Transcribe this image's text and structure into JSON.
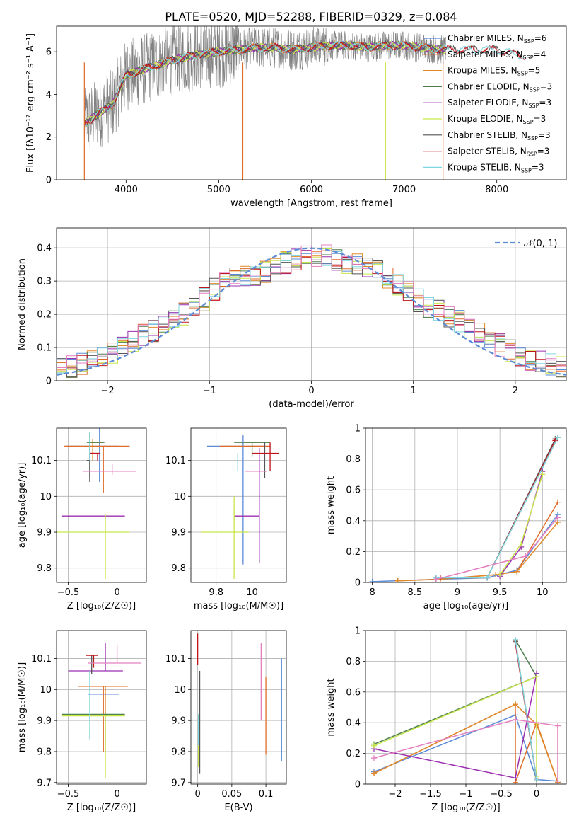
{
  "figure": {
    "title": "PLATE=0520, MJD=52288, FIBERID=0329, z=0.084"
  },
  "colors": {
    "Chabrier MILES": "#5b8bd6",
    "Salpeter MILES": "#e06c2a",
    "Kroupa MILES": "#e08a2a",
    "Chabrier ELODIE": "#4f7f4f",
    "Salpeter ELODIE": "#9b2fb0",
    "Kroupa ELODIE": "#c8e64a",
    "Chabrier STELIB": "#555555",
    "Salpeter STELIB": "#c0141c",
    "Kroupa STELIB": "#7fd6e0",
    "pink": "#e47fc0",
    "spectrum": "#808080",
    "gaussian": "#5b8bd6"
  },
  "chart_data": [
    {
      "type": "line",
      "id": "spectrum",
      "xlabel": "wavelength [Angstrom, rest frame]",
      "ylabel": "Flux [fλ10⁻¹⁷ erg cm⁻² s⁻¹ A⁻¹]",
      "xlim": [
        3250,
        8750
      ],
      "ylim": [
        0,
        7.2
      ],
      "xticks": [
        4000,
        5000,
        6000,
        7000,
        8000
      ],
      "yticks": [
        0,
        2,
        4,
        6
      ],
      "legend": "right",
      "legend_entries": [
        {
          "base": "Chabrier MILES, N",
          "sub": "SSP",
          "tail": "=6"
        },
        {
          "base": "Salpeter MILES, N",
          "sub": "SSP",
          "tail": "=4"
        },
        {
          "base": "Kroupa MILES, N",
          "sub": "SSP",
          "tail": "=5"
        },
        {
          "base": "Chabrier ELODIE, N",
          "sub": "SSP",
          "tail": "=3"
        },
        {
          "base": "Salpeter ELODIE, N",
          "sub": "SSP",
          "tail": "=3"
        },
        {
          "base": "Kroupa ELODIE, N",
          "sub": "SSP",
          "tail": "=3"
        },
        {
          "base": "Chabrier STELIB, N",
          "sub": "SSP",
          "tail": "=3"
        },
        {
          "base": "Salpeter STELIB, N",
          "sub": "SSP",
          "tail": "=3"
        },
        {
          "base": "Kroupa STELIB, N",
          "sub": "SSP",
          "tail": "=3"
        }
      ],
      "series_envelope": {
        "x": [
          3550,
          3700,
          3850,
          4000,
          4200,
          4500,
          4800,
          5000,
          5200,
          5400,
          5600,
          5800,
          6000,
          6200,
          6400,
          6600,
          6800,
          7000,
          7200,
          7400,
          7600,
          7800,
          8000,
          8200,
          8300
        ],
        "y": [
          2.6,
          3.1,
          3.5,
          4.9,
          5.2,
          5.6,
          5.9,
          6.0,
          6.1,
          6.2,
          6.2,
          6.1,
          6.2,
          6.3,
          6.3,
          6.2,
          6.3,
          6.3,
          6.2,
          6.1,
          6.1,
          6.1,
          6.1,
          5.9,
          5.8
        ]
      }
    },
    {
      "type": "line",
      "id": "residuals",
      "xlabel": "(data-model)/error",
      "ylabel": "Normed distribution",
      "xlim": [
        -2.5,
        2.5
      ],
      "ylim": [
        0,
        0.46
      ],
      "xticks": [
        -2,
        -1,
        0,
        1,
        2
      ],
      "yticks": [
        0.0,
        0.1,
        0.2,
        0.3,
        0.4
      ],
      "legend": "upper right",
      "legend_label": "𝒩(0, 1)",
      "hist_x": [
        -2.5,
        -2.3,
        -2.1,
        -1.9,
        -1.7,
        -1.5,
        -1.3,
        -1.1,
        -0.9,
        -0.7,
        -0.5,
        -0.3,
        -0.1,
        0.1,
        0.3,
        0.5,
        0.7,
        0.9,
        1.1,
        1.3,
        1.5,
        1.7,
        1.9,
        2.1,
        2.3,
        2.5
      ],
      "hist_y": [
        0.03,
        0.045,
        0.06,
        0.09,
        0.13,
        0.16,
        0.19,
        0.23,
        0.29,
        0.31,
        0.32,
        0.35,
        0.37,
        0.38,
        0.36,
        0.35,
        0.32,
        0.28,
        0.23,
        0.2,
        0.17,
        0.13,
        0.1,
        0.07,
        0.05,
        0.04
      ]
    },
    {
      "type": "scatter",
      "id": "age-Z",
      "xlabel": "Z [log₁₀(Z/Z☉)]",
      "ylabel": "age  [log₁₀(age/yr)]",
      "xlim": [
        -0.62,
        0.3
      ],
      "ylim": [
        9.76,
        10.19
      ],
      "xticks": [
        -0.5,
        0.0
      ],
      "yticks": [
        9.8,
        9.9,
        10.0,
        10.1
      ],
      "points": [
        {
          "series": "Chabrier MILES",
          "x": -0.18,
          "y": 10.14,
          "xerr": [
            0.35,
            0.2
          ],
          "yerr": [
            0.1,
            0.07
          ]
        },
        {
          "series": "Salpeter MILES",
          "x": -0.14,
          "y": 10.14,
          "xerr": [
            0.4,
            0.27
          ],
          "yerr": [
            0.13,
            0.0
          ]
        },
        {
          "series": "Kroupa MILES",
          "x": -0.25,
          "y": 10.15,
          "xerr": [
            0.05,
            0.1
          ],
          "yerr": [
            0.05,
            0.01
          ]
        },
        {
          "series": "Chabrier ELODIE",
          "x": -0.28,
          "y": 10.15,
          "xerr": [
            0.03,
            0.15
          ],
          "yerr": [
            0.1,
            0.03
          ]
        },
        {
          "series": "Salpeter ELODIE",
          "x": -0.12,
          "y": 9.945,
          "xerr": [
            0.45,
            0.2
          ],
          "yerr": [
            0.0,
            0.0
          ]
        },
        {
          "series": "Kroupa ELODIE",
          "x": -0.12,
          "y": 9.9,
          "xerr": [
            0.5,
            0.25
          ],
          "yerr": [
            0.13,
            0.05
          ]
        },
        {
          "series": "Chabrier STELIB",
          "x": -0.28,
          "y": 10.1,
          "xerr": [
            0.03,
            0.0
          ],
          "yerr": [
            0.06,
            0.0
          ]
        },
        {
          "series": "Salpeter STELIB",
          "x": -0.2,
          "y": 10.12,
          "xerr": [
            0.08,
            0.03
          ],
          "yerr": [
            0.02,
            0.0
          ]
        },
        {
          "series": "Kroupa STELIB",
          "x": -0.28,
          "y": 10.12,
          "xerr": [
            0.0,
            0.0
          ],
          "yerr": [
            0.02,
            0.06
          ]
        },
        {
          "series": "pink",
          "x": -0.05,
          "y": 10.07,
          "xerr": [
            0.3,
            0.25
          ],
          "yerr": [
            0.01,
            0.02
          ]
        }
      ]
    },
    {
      "type": "scatter",
      "id": "age-mass",
      "xlabel": "mass [log₁₀(M/M☉)]",
      "ylabel": "",
      "xlim": [
        9.66,
        10.19
      ],
      "ylim": [
        9.76,
        10.19
      ],
      "xticks": [
        9.8,
        10.0
      ],
      "yticks": [
        9.8,
        9.9,
        10.0,
        10.1
      ],
      "points": [
        {
          "series": "Chabrier MILES",
          "x": 9.95,
          "y": 10.14,
          "xerr": [
            0.2,
            0.12
          ],
          "yerr": [
            0.33,
            0.03
          ]
        },
        {
          "series": "Salpeter MILES",
          "x": 10.0,
          "y": 10.14,
          "xerr": [
            0.18,
            0.1
          ],
          "yerr": [
            0.0,
            0.0
          ]
        },
        {
          "series": "Kroupa MILES",
          "x": 10.02,
          "y": 10.15,
          "xerr": [
            0.06,
            0.04
          ],
          "yerr": [
            0.0,
            0.0
          ]
        },
        {
          "series": "Chabrier ELODIE",
          "x": 10.0,
          "y": 10.15,
          "xerr": [
            0.1,
            0.1
          ],
          "yerr": [
            0.04,
            0.0
          ]
        },
        {
          "series": "Salpeter ELODIE",
          "x": 10.04,
          "y": 9.945,
          "xerr": [
            0.14,
            0.0
          ],
          "yerr": [
            0.13,
            0.19
          ]
        },
        {
          "series": "Kroupa ELODIE",
          "x": 9.9,
          "y": 9.9,
          "xerr": [
            0.18,
            0.08
          ],
          "yerr": [
            0.13,
            0.1
          ]
        },
        {
          "series": "Chabrier STELIB",
          "x": 10.07,
          "y": 10.05,
          "xerr": [
            0.0,
            0.0
          ],
          "yerr": [
            0.0,
            0.1
          ]
        },
        {
          "series": "Salpeter STELIB",
          "x": 10.1,
          "y": 10.12,
          "xerr": [
            0.1,
            0.05
          ],
          "yerr": [
            0.05,
            0.03
          ]
        },
        {
          "series": "Kroupa STELIB",
          "x": 9.92,
          "y": 10.12,
          "xerr": [
            0.0,
            0.0
          ],
          "yerr": [
            0.05,
            0.0
          ]
        },
        {
          "series": "pink",
          "x": 10.04,
          "y": 10.07,
          "xerr": [
            0.08,
            0.04
          ],
          "yerr": [
            0.0,
            0.0
          ]
        }
      ]
    },
    {
      "type": "line",
      "id": "mass-weight-age",
      "xlabel": "age  [log₁₀(age/yr)]",
      "ylabel": "mass weight",
      "xlim": [
        7.92,
        10.28
      ],
      "ylim": [
        0,
        1.0
      ],
      "xticks": [
        8.0,
        8.5,
        9.0,
        9.5,
        10.0
      ],
      "yticks": [
        0.0,
        0.2,
        0.4,
        0.6,
        0.8,
        1.0
      ],
      "series": [
        {
          "name": "Chabrier MILES",
          "x": [
            8.0,
            8.75,
            9.35,
            9.7,
            10.18
          ],
          "y": [
            0.005,
            0.02,
            0.03,
            0.08,
            0.44
          ]
        },
        {
          "name": "Salpeter MILES",
          "x": [
            8.3,
            8.75,
            9.45,
            9.7,
            10.18
          ],
          "y": [
            0.01,
            0.02,
            0.05,
            0.07,
            0.52
          ]
        },
        {
          "name": "Kroupa MILES",
          "x": [
            8.3,
            8.8,
            9.45,
            9.7,
            10.18
          ],
          "y": [
            0.01,
            0.02,
            0.05,
            0.07,
            0.39
          ]
        },
        {
          "name": "Chabrier ELODIE",
          "x": [
            8.75,
            9.35,
            10.18
          ],
          "y": [
            0.03,
            0.03,
            0.94
          ]
        },
        {
          "name": "Salpeter ELODIE",
          "x": [
            9.5,
            9.75,
            10.0
          ],
          "y": [
            0.04,
            0.23,
            0.72
          ]
        },
        {
          "name": "Kroupa ELODIE",
          "x": [
            9.5,
            9.75,
            10.0
          ],
          "y": [
            0.05,
            0.25,
            0.7
          ]
        },
        {
          "name": "Chabrier STELIB",
          "x": [
            8.75,
            9.35,
            10.15
          ],
          "y": [
            0.03,
            0.03,
            0.93
          ]
        },
        {
          "name": "Salpeter STELIB",
          "x": [
            8.8,
            9.35,
            10.15
          ],
          "y": [
            0.03,
            0.03,
            0.92
          ]
        },
        {
          "name": "Kroupa STELIB",
          "x": [
            8.75,
            9.35,
            10.18
          ],
          "y": [
            0.03,
            0.03,
            0.94
          ]
        },
        {
          "name": "pink",
          "x": [
            8.75,
            9.8,
            10.18
          ],
          "y": [
            0.02,
            0.17,
            0.42
          ]
        }
      ]
    },
    {
      "type": "scatter",
      "id": "mass-Z",
      "xlabel": "Z [log₁₀(Z/Z☉)]",
      "ylabel": "mass [log₁₀(M/M☉)]",
      "xlim": [
        -0.62,
        0.3
      ],
      "ylim": [
        9.695,
        10.19
      ],
      "xticks": [
        -0.5,
        0.0
      ],
      "yticks": [
        9.7,
        9.8,
        9.9,
        10.0,
        10.1
      ],
      "points": [
        {
          "series": "Chabrier MILES",
          "x": -0.1,
          "y": 9.985,
          "xerr": [
            0.2,
            0.12
          ],
          "yerr": [
            0.0,
            0.0
          ]
        },
        {
          "series": "Salpeter MILES",
          "x": -0.14,
          "y": 10.01,
          "xerr": [
            0.26,
            0.25
          ],
          "yerr": [
            0.21,
            0.0
          ]
        },
        {
          "series": "Kroupa MILES",
          "x": -0.12,
          "y": 10.01,
          "xerr": [
            0.0,
            0.0
          ],
          "yerr": [
            0.21,
            0.0
          ]
        },
        {
          "series": "Chabrier ELODIE",
          "x": -0.12,
          "y": 9.92,
          "xerr": [
            0.45,
            0.2
          ],
          "yerr": [
            0.0,
            0.0
          ]
        },
        {
          "series": "Salpeter ELODIE",
          "x": -0.12,
          "y": 10.06,
          "xerr": [
            0.38,
            0.18
          ],
          "yerr": [
            0.0,
            0.09
          ]
        },
        {
          "series": "Kroupa ELODIE",
          "x": -0.12,
          "y": 9.915,
          "xerr": [
            0.45,
            0.2
          ],
          "yerr": [
            0.2,
            0.0
          ]
        },
        {
          "series": "Chabrier STELIB",
          "x": -0.26,
          "y": 10.05,
          "xerr": [
            0.0,
            0.0
          ],
          "yerr": [
            0.0,
            0.06
          ]
        },
        {
          "series": "Salpeter STELIB",
          "x": -0.24,
          "y": 10.11,
          "xerr": [
            0.08,
            0.04
          ],
          "yerr": [
            0.04,
            0.0
          ]
        },
        {
          "series": "Kroupa STELIB",
          "x": -0.28,
          "y": 10.06,
          "xerr": [
            0.0,
            0.0
          ],
          "yerr": [
            0.22,
            0.0
          ]
        },
        {
          "series": "pink",
          "x": 0.0,
          "y": 10.085,
          "xerr": [
            0.3,
            0.25
          ],
          "yerr": [
            0.0,
            0.06
          ]
        }
      ]
    },
    {
      "type": "scatter",
      "id": "mass-ebv",
      "xlabel": "E(B-V)",
      "ylabel": "",
      "xlim": [
        -0.01,
        0.13
      ],
      "ylim": [
        9.695,
        10.19
      ],
      "xticks": [
        0.0,
        0.05,
        0.1
      ],
      "yticks": [
        9.7,
        9.8,
        9.9,
        10.0,
        10.1
      ],
      "points": [
        {
          "series": "Chabrier MILES",
          "x": 0.123,
          "y": 9.77,
          "xerr": [
            0.0,
            0.0
          ],
          "yerr": [
            0.0,
            0.33
          ]
        },
        {
          "series": "Salpeter MILES",
          "x": 0.1,
          "y": 9.79,
          "xerr": [
            0.0,
            0.0
          ],
          "yerr": [
            0.0,
            0.25
          ]
        },
        {
          "series": "Kroupa ELODIE",
          "x": 0.001,
          "y": 9.75,
          "xerr": [
            0.0,
            0.0
          ],
          "yerr": [
            0.0,
            0.08
          ]
        },
        {
          "series": "Chabrier STELIB",
          "x": 0.003,
          "y": 9.73,
          "xerr": [
            0.0,
            0.0
          ],
          "yerr": [
            0.0,
            0.33
          ]
        },
        {
          "series": "Salpeter STELIB",
          "x": 0.0,
          "y": 10.08,
          "xerr": [
            0.0,
            0.0
          ],
          "yerr": [
            0.0,
            0.1
          ]
        },
        {
          "series": "Kroupa STELIB",
          "x": 0.001,
          "y": 9.82,
          "xerr": [
            0.0,
            0.0
          ],
          "yerr": [
            0.0,
            0.1
          ]
        },
        {
          "series": "pink",
          "x": 0.093,
          "y": 9.9,
          "xerr": [
            0.0,
            0.0
          ],
          "yerr": [
            0.0,
            0.25
          ]
        }
      ]
    },
    {
      "type": "line",
      "id": "mass-weight-Z",
      "xlabel": "Z [log₁₀(Z/Z☉)]",
      "ylabel": "mass weight",
      "xlim": [
        -2.42,
        0.42
      ],
      "ylim": [
        0,
        1.0
      ],
      "xticks": [
        -2.0,
        -1.5,
        -1.0,
        -0.5,
        0.0
      ],
      "yticks": [
        0.0,
        0.2,
        0.4,
        0.6,
        0.8,
        1.0
      ],
      "series": [
        {
          "name": "Chabrier MILES",
          "x": [
            -2.3,
            -0.3,
            0.0,
            0.3
          ],
          "y": [
            0.08,
            0.45,
            0.03,
            0.02
          ]
        },
        {
          "name": "Salpeter MILES",
          "x": [
            -2.3,
            -0.3,
            -0.3,
            0.0,
            0.3
          ],
          "y": [
            0.07,
            0.52,
            0.01,
            0.4,
            0.01
          ]
        },
        {
          "name": "Kroupa MILES",
          "x": [
            -2.3,
            -0.3,
            0.0,
            0.3
          ],
          "y": [
            0.07,
            0.52,
            0.39,
            0.01
          ]
        },
        {
          "name": "Chabrier ELODIE",
          "x": [
            -2.3,
            0.0,
            -0.3,
            0.0
          ],
          "y": [
            0.26,
            0.7,
            0.94,
            0.03
          ]
        },
        {
          "name": "Salpeter ELODIE",
          "x": [
            -2.3,
            -0.3,
            0.0
          ],
          "y": [
            0.23,
            0.04,
            0.72
          ]
        },
        {
          "name": "Kroupa ELODIE",
          "x": [
            -2.3,
            0.0,
            0.0
          ],
          "y": [
            0.25,
            0.7,
            0.05
          ]
        },
        {
          "name": "Chabrier STELIB",
          "x": [
            -0.3,
            0.0
          ],
          "y": [
            0.93,
            0.03
          ]
        },
        {
          "name": "Salpeter STELIB",
          "x": [
            -0.3,
            0.0
          ],
          "y": [
            0.92,
            0.03
          ]
        },
        {
          "name": "Kroupa STELIB",
          "x": [
            -0.3,
            0.0
          ],
          "y": [
            0.94,
            0.03
          ]
        },
        {
          "name": "pink",
          "x": [
            -2.3,
            -0.3,
            0.3,
            0.3
          ],
          "y": [
            0.17,
            0.42,
            0.38,
            0.02
          ]
        }
      ]
    }
  ]
}
